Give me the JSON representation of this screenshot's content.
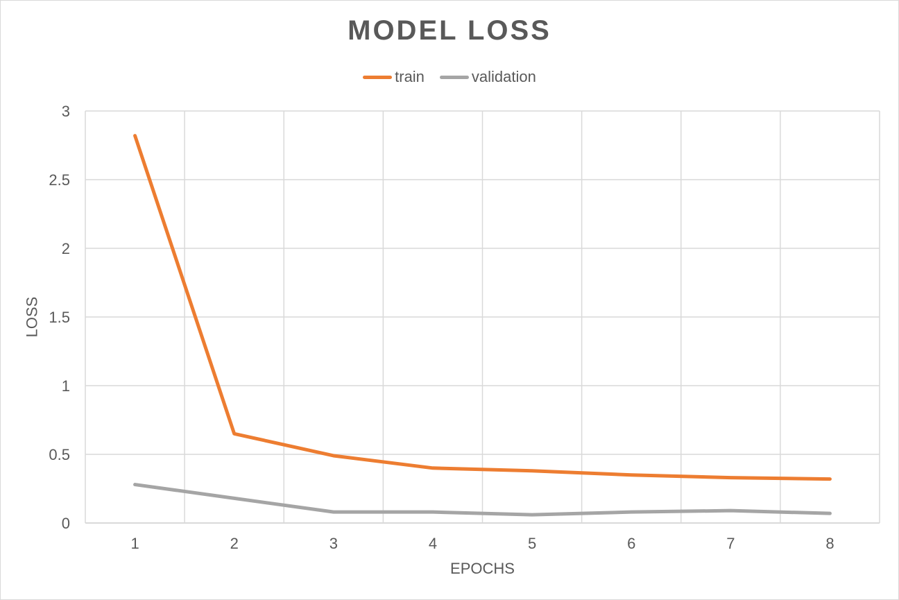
{
  "chart_data": {
    "type": "line",
    "title": "MODEL LOSS",
    "xlabel": "EPOCHS",
    "ylabel": "LOSS",
    "categories": [
      "1",
      "2",
      "3",
      "4",
      "5",
      "6",
      "7",
      "8"
    ],
    "ylim": [
      0,
      3
    ],
    "yticks": [
      "0",
      "0.5",
      "1",
      "1.5",
      "2",
      "2.5",
      "3"
    ],
    "grid": true,
    "legend_position": "top",
    "series": [
      {
        "name": "train",
        "color": "#ed7d31",
        "values": [
          2.82,
          0.65,
          0.49,
          0.4,
          0.38,
          0.35,
          0.33,
          0.32
        ]
      },
      {
        "name": "validation",
        "color": "#a5a5a5",
        "values": [
          0.28,
          0.18,
          0.08,
          0.08,
          0.06,
          0.08,
          0.09,
          0.07
        ]
      }
    ]
  }
}
